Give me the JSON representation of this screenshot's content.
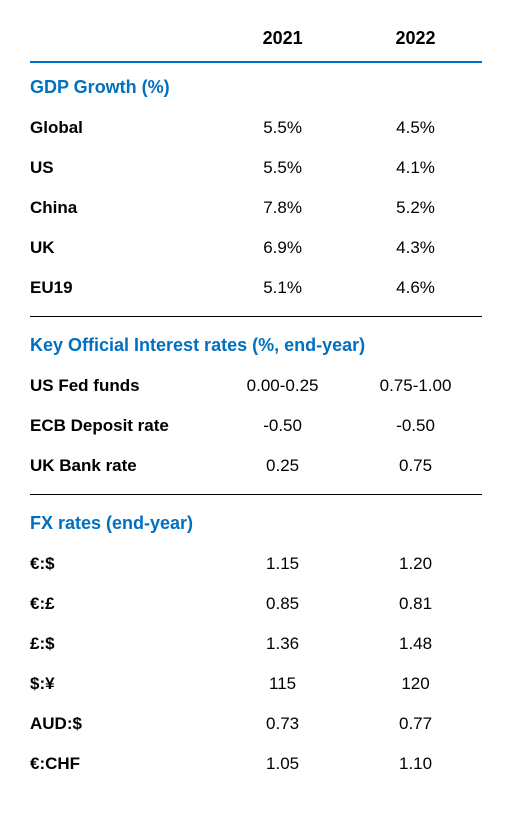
{
  "columns": {
    "year1": "2021",
    "year2": "2022"
  },
  "sections": [
    {
      "title": "GDP Growth (%)",
      "rows": [
        {
          "label": "Global",
          "v1": "5.5%",
          "v2": "4.5%"
        },
        {
          "label": "US",
          "v1": "5.5%",
          "v2": "4.1%"
        },
        {
          "label": "China",
          "v1": "7.8%",
          "v2": "5.2%"
        },
        {
          "label": "UK",
          "v1": "6.9%",
          "v2": "4.3%"
        },
        {
          "label": "EU19",
          "v1": "5.1%",
          "v2": "4.6%"
        }
      ]
    },
    {
      "title": "Key Official Interest rates (%, end-year)",
      "rows": [
        {
          "label": "US Fed funds",
          "v1": "0.00-0.25",
          "v2": "0.75-1.00"
        },
        {
          "label": "ECB Deposit rate",
          "v1": "-0.50",
          "v2": "-0.50"
        },
        {
          "label": "UK Bank rate",
          "v1": "0.25",
          "v2": "0.75"
        }
      ]
    },
    {
      "title": "FX rates (end-year)",
      "rows": [
        {
          "label": "€:$",
          "v1": "1.15",
          "v2": "1.20"
        },
        {
          "label": "€:£",
          "v1": "0.85",
          "v2": "0.81"
        },
        {
          "label": "£:$",
          "v1": "1.36",
          "v2": "1.48"
        },
        {
          "label": "$:¥",
          "v1": "115",
          "v2": "120"
        },
        {
          "label": "AUD:$",
          "v1": "0.73",
          "v2": "0.77"
        },
        {
          "label": "€:CHF",
          "v1": "1.05",
          "v2": "1.10"
        }
      ]
    }
  ],
  "style": {
    "accent_color": "#0070c0",
    "text_color": "#000000",
    "background_color": "#ffffff",
    "header_fontsize": 18,
    "row_fontsize": 17,
    "font_family": "Arial"
  }
}
